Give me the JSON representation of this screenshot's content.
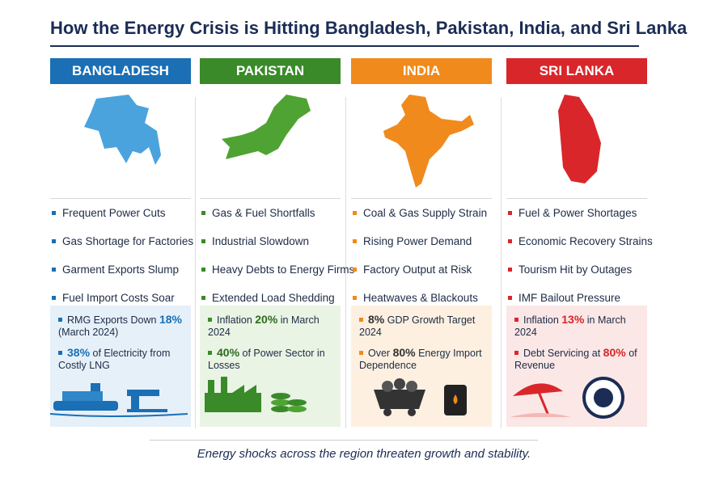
{
  "title": "How the Energy Crisis is Hitting Bangladesh, Pakistan, India, and Sri Lanka",
  "columns": [
    {
      "name": "BANGLADESH",
      "bullets": [
        "Frequent Power Cuts",
        "Gas Shortage for Factories",
        "Garment Exports Slump",
        "Fuel Import Costs Soar"
      ],
      "stats": [
        {
          "lead": "RMG Exports Down",
          "highlight": "18%",
          "tail": "(March 2024)"
        },
        {
          "highlight": "38%",
          "tail": "of Electricity from Costly LNG"
        }
      ]
    },
    {
      "name": "PAKISTAN",
      "bullets": [
        "Gas & Fuel Shortfalls",
        "Industrial Slowdown",
        "Heavy Debts to Energy Firms",
        "Extended Load Shedding"
      ],
      "stats": [
        {
          "lead": "Inflation",
          "highlight": "20%",
          "tail": "in March 2024"
        },
        {
          "highlight": "40%",
          "tail": "of Power Sector in Losses"
        }
      ]
    },
    {
      "name": "INDIA",
      "bullets": [
        "Coal & Gas Supply Strain",
        "Rising Power Demand",
        "Factory Output at Risk",
        "Heatwaves & Blackouts"
      ],
      "stats": [
        {
          "highlight": "8%",
          "tail": "GDP Growth Target 2024"
        },
        {
          "lead": "Over",
          "highlight": "80%",
          "tail": "Energy Import Dependence"
        }
      ]
    },
    {
      "name": "SRI LANKA",
      "bullets": [
        "Fuel & Power Shortages",
        "Economic Recovery Strains",
        "Tourism Hit by Outages",
        "IMF Bailout Pressure"
      ],
      "stats": [
        {
          "lead": "Inflation",
          "highlight": "13%",
          "tail": "in March 2024"
        },
        {
          "lead": "Debt Servicing at",
          "highlight": "80%",
          "tail": "of Revenue"
        }
      ]
    }
  ],
  "footer": "Energy shocks across the region threaten growth and stability."
}
